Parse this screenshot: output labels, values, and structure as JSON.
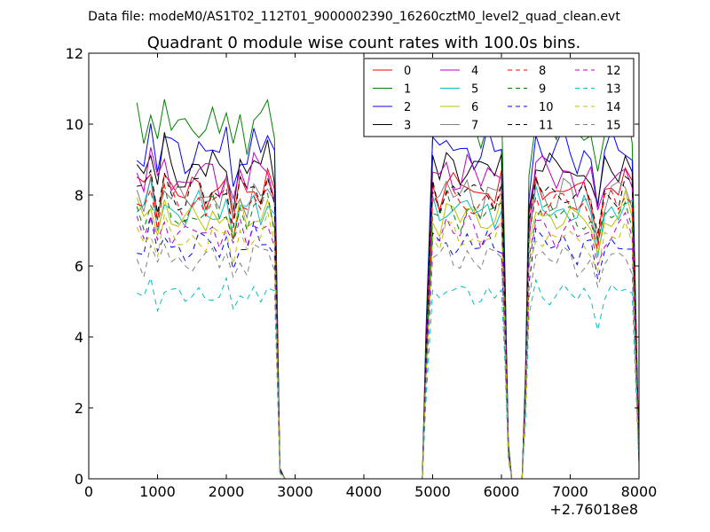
{
  "figure": {
    "supertitle": "Data file: modeM0/AS1T02_112T01_9000002390_16260cztM0_level2_quad_clean.evt"
  },
  "chart_data": {
    "type": "line",
    "title": "Quadrant 0 module wise count rates with 100.0s bins.",
    "xlabel": "",
    "ylabel": "",
    "x_offset_label": "+2.76018e8",
    "xlim": [
      0,
      8000
    ],
    "ylim": [
      0,
      12
    ],
    "xticks": [
      0,
      1000,
      2000,
      3000,
      4000,
      5000,
      6000,
      7000,
      8000
    ],
    "yticks": [
      0,
      2,
      4,
      6,
      8,
      10,
      12
    ],
    "legend_position": "top-right",
    "legend_columns": 4,
    "base_time_series": {
      "x": [
        700,
        800,
        900,
        1000,
        1100,
        1200,
        1300,
        1400,
        1500,
        1600,
        1700,
        1800,
        1900,
        2000,
        2100,
        2200,
        2300,
        2400,
        2500,
        2600,
        2700,
        2780,
        2850,
        3000,
        3500,
        4000,
        4500,
        4750,
        4800,
        4850,
        4900,
        5000,
        5100,
        5200,
        5300,
        5400,
        5500,
        5600,
        5700,
        5800,
        5900,
        6000,
        6050,
        6100,
        6150,
        6200,
        6250,
        6300,
        6350,
        6400,
        6500,
        6600,
        6700,
        6800,
        6900,
        7000,
        7100,
        7200,
        7300,
        7400,
        7500,
        7600,
        7700,
        7800,
        7900,
        8000
      ],
      "activity_profile": [
        1.0,
        0.96,
        1.05,
        0.93,
        1.04,
        0.98,
        0.97,
        0.95,
        0.98,
        1.0,
        0.97,
        1.0,
        0.96,
        1.01,
        0.89,
        1.0,
        0.95,
        1.02,
        0.98,
        1.03,
        0.95,
        0.03,
        0.0,
        0.0,
        0.0,
        0.0,
        0.0,
        0.0,
        0.0,
        0.0,
        0.4,
        1.0,
        0.96,
        1.02,
        0.99,
        0.97,
        1.01,
        0.98,
        0.96,
        1.0,
        0.97,
        1.01,
        0.6,
        0.1,
        0.0,
        0.0,
        0.0,
        0.0,
        0.3,
        0.85,
        1.02,
        0.99,
        0.98,
        0.97,
        1.0,
        0.99,
        0.95,
        0.98,
        0.96,
        0.84,
        0.97,
        0.99,
        0.98,
        1.02,
        0.97,
        0.07
      ]
    },
    "series": [
      {
        "name": "0",
        "color": "#ff0000",
        "style": "solid",
        "level": 8.3
      },
      {
        "name": "1",
        "color": "#008000",
        "style": "solid",
        "level": 10.2
      },
      {
        "name": "2",
        "color": "#0000ff",
        "style": "solid",
        "level": 9.4
      },
      {
        "name": "3",
        "color": "#000000",
        "style": "solid",
        "level": 8.9
      },
      {
        "name": "4",
        "color": "#bf00bf",
        "style": "solid",
        "level": 8.7
      },
      {
        "name": "5",
        "color": "#00bfbf",
        "style": "solid",
        "level": 7.7
      },
      {
        "name": "6",
        "color": "#bfbf00",
        "style": "solid",
        "level": 7.5
      },
      {
        "name": "7",
        "color": "#808080",
        "style": "solid",
        "level": 8.1
      },
      {
        "name": "8",
        "color": "#ff0000",
        "style": "dashed",
        "level": 7.9
      },
      {
        "name": "9",
        "color": "#008000",
        "style": "dashed",
        "level": 7.6
      },
      {
        "name": "10",
        "color": "#0000ff",
        "style": "dashed",
        "level": 6.7
      },
      {
        "name": "11",
        "color": "#000000",
        "style": "dashed",
        "level": 8.2
      },
      {
        "name": "12",
        "color": "#bf00bf",
        "style": "dashed",
        "level": 7.1
      },
      {
        "name": "13",
        "color": "#00bfbf",
        "style": "dashed",
        "level": 5.3
      },
      {
        "name": "14",
        "color": "#bfbf00",
        "style": "dashed",
        "level": 6.9
      },
      {
        "name": "15",
        "color": "#808080",
        "style": "dashed",
        "level": 6.3
      }
    ]
  }
}
